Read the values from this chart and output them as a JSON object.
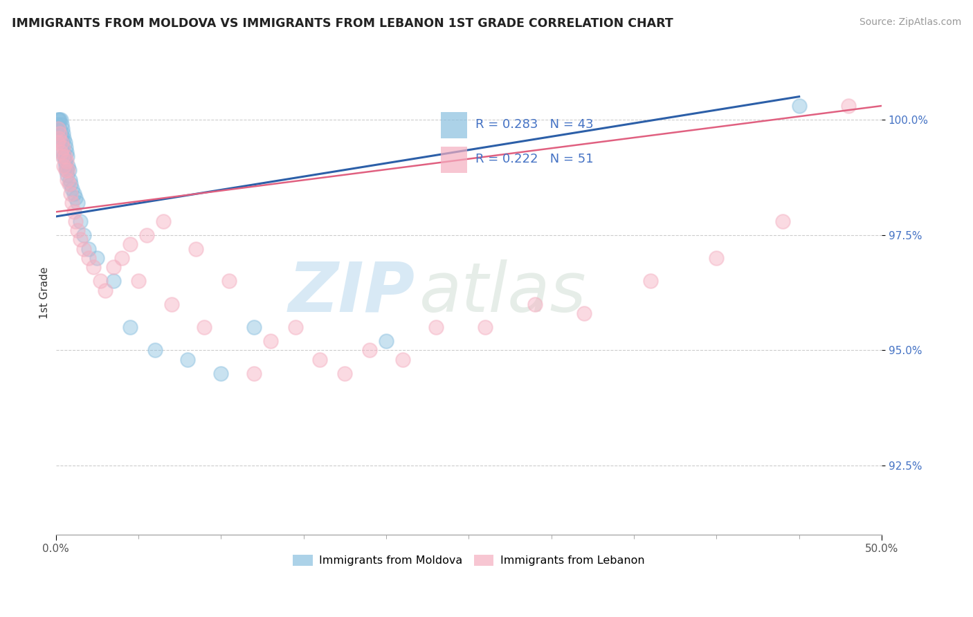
{
  "title": "IMMIGRANTS FROM MOLDOVA VS IMMIGRANTS FROM LEBANON 1ST GRADE CORRELATION CHART",
  "source": "Source: ZipAtlas.com",
  "ylabel": "1st Grade",
  "yticks": [
    92.5,
    95.0,
    97.5,
    100.0
  ],
  "ytick_labels": [
    "92.5%",
    "95.0%",
    "97.5%",
    "100.0%"
  ],
  "xlim": [
    0.0,
    50.0
  ],
  "ylim": [
    91.0,
    101.5
  ],
  "legend_r_moldova": "0.283",
  "legend_n_moldova": "43",
  "legend_r_lebanon": "0.222",
  "legend_n_lebanon": "51",
  "color_moldova": "#89bfdf",
  "color_lebanon": "#f4aec0",
  "line_color_moldova": "#2c5fa8",
  "line_color_lebanon": "#e06080",
  "watermark_zip": "ZIP",
  "watermark_atlas": "atlas",
  "moldova_x": [
    0.1,
    0.15,
    0.2,
    0.25,
    0.25,
    0.3,
    0.3,
    0.35,
    0.35,
    0.4,
    0.4,
    0.45,
    0.45,
    0.5,
    0.5,
    0.55,
    0.55,
    0.6,
    0.6,
    0.65,
    0.65,
    0.7,
    0.7,
    0.75,
    0.8,
    0.85,
    0.9,
    1.0,
    1.1,
    1.2,
    1.3,
    1.5,
    1.7,
    2.0,
    2.5,
    3.5,
    4.5,
    6.0,
    8.0,
    10.0,
    12.0,
    20.0,
    45.0
  ],
  "moldova_y": [
    99.9,
    100.0,
    100.0,
    99.8,
    100.0,
    99.7,
    100.0,
    99.9,
    99.6,
    99.8,
    99.5,
    99.7,
    99.3,
    99.6,
    99.2,
    99.5,
    99.1,
    99.4,
    99.0,
    99.3,
    98.9,
    99.2,
    98.8,
    99.0,
    98.9,
    98.7,
    98.6,
    98.5,
    98.4,
    98.3,
    98.2,
    97.8,
    97.5,
    97.2,
    97.0,
    96.5,
    95.5,
    95.0,
    94.8,
    94.5,
    95.5,
    95.2,
    100.3
  ],
  "lebanon_x": [
    0.1,
    0.15,
    0.2,
    0.25,
    0.3,
    0.35,
    0.4,
    0.45,
    0.5,
    0.55,
    0.6,
    0.65,
    0.7,
    0.75,
    0.8,
    0.9,
    1.0,
    1.1,
    1.2,
    1.3,
    1.5,
    1.7,
    2.0,
    2.3,
    2.7,
    3.0,
    3.5,
    4.0,
    4.5,
    5.0,
    5.5,
    6.5,
    7.0,
    8.5,
    9.0,
    10.5,
    12.0,
    13.0,
    14.5,
    16.0,
    17.5,
    19.0,
    21.0,
    23.0,
    26.0,
    29.0,
    32.0,
    36.0,
    40.0,
    44.0,
    48.0
  ],
  "lebanon_y": [
    99.5,
    99.8,
    99.6,
    99.7,
    99.3,
    99.5,
    99.2,
    99.4,
    99.0,
    99.2,
    98.9,
    99.1,
    98.7,
    98.9,
    98.6,
    98.4,
    98.2,
    98.0,
    97.8,
    97.6,
    97.4,
    97.2,
    97.0,
    96.8,
    96.5,
    96.3,
    96.8,
    97.0,
    97.3,
    96.5,
    97.5,
    97.8,
    96.0,
    97.2,
    95.5,
    96.5,
    94.5,
    95.2,
    95.5,
    94.8,
    94.5,
    95.0,
    94.8,
    95.5,
    95.5,
    96.0,
    95.8,
    96.5,
    97.0,
    97.8,
    100.3
  ]
}
